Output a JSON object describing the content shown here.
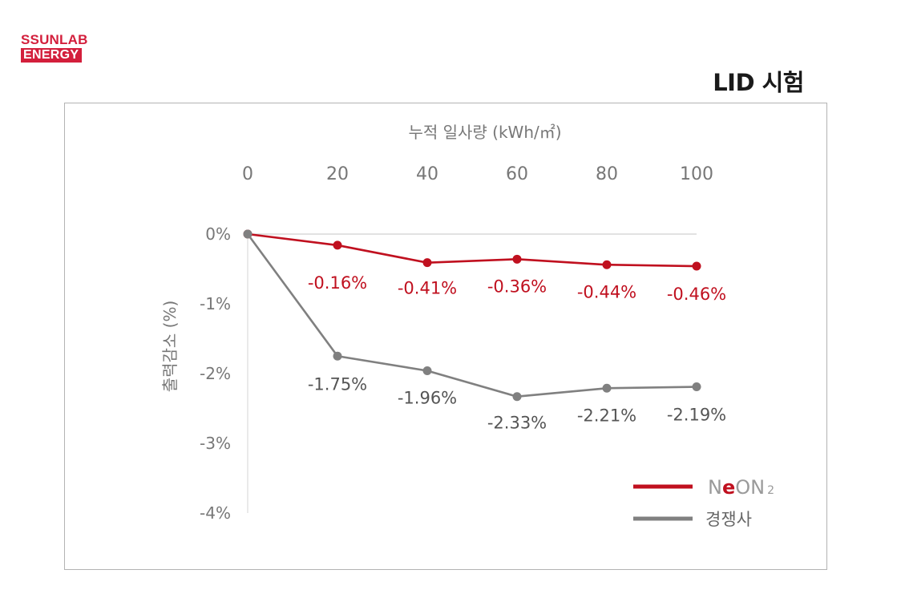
{
  "brand": {
    "line1": "SSUNLAB",
    "line2": "ENERGY",
    "color": "#d31f3c"
  },
  "page_title": "LID 시험",
  "chart_data": {
    "type": "line",
    "xlabel": "누적 일사량 (kWh/㎡)",
    "ylabel": "출력감소 (%)",
    "x": [
      0,
      20,
      40,
      60,
      80,
      100
    ],
    "x_ticks": [
      "0",
      "20",
      "40",
      "60",
      "80",
      "100"
    ],
    "x_axis_position": "top",
    "y_ticks": [
      "0%",
      "-1%",
      "-2%",
      "-3%",
      "-4%"
    ],
    "ylim": [
      -4,
      0
    ],
    "grid": false,
    "legend_position": "bottom-right",
    "series": [
      {
        "name": "NeON2",
        "color": "#c0101f",
        "values": [
          0,
          -0.16,
          -0.41,
          -0.36,
          -0.44,
          -0.46
        ],
        "labels": [
          "",
          "-0.16%",
          "-0.41%",
          "-0.36%",
          "-0.44%",
          "-0.46%"
        ]
      },
      {
        "name": "경쟁사",
        "color": "#808080",
        "values": [
          0,
          -1.75,
          -1.96,
          -2.33,
          -2.21,
          -2.19
        ],
        "labels": [
          "",
          "-1.75%",
          "-1.96%",
          "-2.33%",
          "-2.21%",
          "-2.19%"
        ]
      }
    ]
  }
}
